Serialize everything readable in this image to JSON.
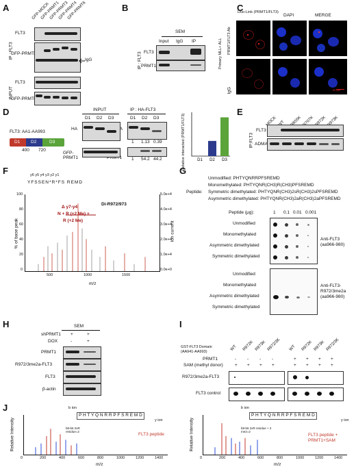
{
  "panels": {
    "A": {
      "label": "A",
      "lanes": [
        "GFP-MOCK",
        "GFP-PRMT1",
        "GFP-PRMT3",
        "GFP-PRMT4",
        "GFP-PRMT6"
      ],
      "ip_label": "IP : FLT3",
      "input_label": "INPUT",
      "rows": [
        "FLT3",
        "GFP-PRMTs",
        "FLT3",
        "GFP-PRMTs"
      ],
      "igg": "IgG"
    },
    "B": {
      "label": "B",
      "header": "SEM",
      "lanes": [
        "Input",
        "IgG",
        "IP"
      ],
      "ip_label": "IP : FLT3",
      "rows": [
        "FLT3",
        "PRMT1"
      ]
    },
    "C": {
      "label": "C",
      "cols": [
        "Duo-Link (PRMT1/FLT3)",
        "DAPI",
        "MERGE"
      ],
      "row1": "PRMT1/FLT3 Ab",
      "row2": "IgG",
      "side": "Primary MLL+ ALL",
      "scale": "50 μm"
    },
    "D": {
      "label": "D",
      "construct": "FLT3: AA1-AA993",
      "domains": [
        "D1",
        "D2",
        "D3"
      ],
      "boundaries": [
        "400",
        "720"
      ],
      "input_header": "INPUT",
      "ip_header": "IP : HA-FLT3",
      "lanes": [
        "D1",
        "D2",
        "D3"
      ],
      "rows": [
        "HA",
        "GFP-PRMT1"
      ],
      "quant_ha": [
        "1",
        "1.13",
        "0.39"
      ],
      "quant_prmt1": [
        "1",
        "54.2",
        "44.2"
      ],
      "chart_ylabel": "Relative interacted (PRMT1/FLT3)"
    },
    "E": {
      "label": "E",
      "lanes": [
        "MOCK",
        "WT",
        "R655K",
        "R707K",
        "R972K",
        "R973K"
      ],
      "ip_label": "IP:FLT3",
      "rows": [
        "FLT3",
        "ADMA"
      ]
    },
    "F": {
      "label": "F",
      "peptide_top": "y6 y5 y4 y3 y2 y1",
      "sequence": "YFSSEN*R*FS REMD",
      "annotation_title": "Di-R972/973",
      "annotation1": "Δ y7-y4",
      "annotation2": "N + R (+2 Me) +",
      "annotation3": "R (+2 Me)",
      "ylabel": "% of base peak",
      "y2label": "Ion current",
      "xlabel": "m/z",
      "xticks": [
        "500",
        "1000",
        "1500"
      ],
      "yticks": [
        "0",
        "20",
        "40",
        "60",
        "80",
        "100"
      ],
      "y2ticks": [
        "0.0e+0",
        "1.0e+4",
        "2.0e+4",
        "3.0e+4",
        "4.0e+4",
        "5.0e+4"
      ]
    },
    "G": {
      "label": "G",
      "peptide_label": "Peptide:",
      "peptides": [
        "Unmodified: PHTYQNRRPFSREMD",
        "Monomethylated: PHTYQNR(CH3)R(CH3)PFSREMD",
        "Symmetric dimethylated: PHTYQNR(CH3)2sR(CH3)2sPFSREMD",
        "Asymmetric dimethylated: PHTYQNR(CH3)2aR(CH3)2aPFSREMD"
      ],
      "amount_label": "Peptide (μg):",
      "amounts": [
        "1",
        "0.1",
        "0.01",
        "0.001"
      ],
      "rows": [
        "Unmodified",
        "Monomethylated",
        "Asymmetric dimethylated",
        "Symmetric dimethylated"
      ],
      "ab1": "Anti-FLT3 (aa966-980)",
      "ab2": "Anti-FLT3-R972/3me2a (aa966-980)"
    },
    "H": {
      "label": "H",
      "header": "SEM",
      "cond1": "shPRMT1",
      "cond2": "DOX",
      "cond1_vals": [
        "+",
        "+"
      ],
      "cond2_vals": [
        "-",
        "+"
      ],
      "rows": [
        "PRMT1",
        "R972/3me2a-FLT3",
        "FLT3",
        "β-actin"
      ]
    },
    "I": {
      "label": "I",
      "domain_label": "GST-FLT3 Domain (AA941-AA993)",
      "lanes": [
        "WT",
        "R972K",
        "R973K",
        "R972/3K",
        "WT",
        "R972K",
        "R973K",
        "R972/3K"
      ],
      "prmt1": "PRMT1",
      "sam": "SAM (methyl donor)",
      "prmt1_vals": [
        "-",
        "-",
        "-",
        "-",
        "+",
        "+",
        "+",
        "+"
      ],
      "sam_vals": [
        "+",
        "+",
        "+",
        "+",
        "+",
        "+",
        "+",
        "+"
      ],
      "row1": "R972/3me2a-FLT3",
      "row2": "FLT3 control"
    },
    "J": {
      "label": "J",
      "left_seq": "P H T Y Q N R R P F S R E M D",
      "right_seq": "P H T Y Q N R R P F S R E M D",
      "b_ion": "b ion",
      "y_ion": "y ion",
      "left_title": "FLT3 peptide",
      "right_title": "FLT3 peptide + PRMT1+SAM",
      "ylabel": "Relative Intensity",
      "xlabel": "m/z",
      "xticks": [
        "0",
        "200",
        "400",
        "600",
        "800",
        "1000",
        "1200",
        "1400"
      ],
      "left_annot": "b8-b6 2xR residue=2",
      "right_annot": "b8-b6 2xR residue + 2 me2=2"
    }
  },
  "chart_data": [
    {
      "type": "bar",
      "categories": [
        "D1",
        "D2",
        "D3"
      ],
      "values": [
        0,
        45,
        115
      ],
      "colors": [
        "#2b3a8c",
        "#2b3a8c",
        "#5aa43a"
      ],
      "ylim": [
        0,
        130
      ],
      "ylabel": "Relative interacted (PRMT1/FLT3)"
    }
  ]
}
